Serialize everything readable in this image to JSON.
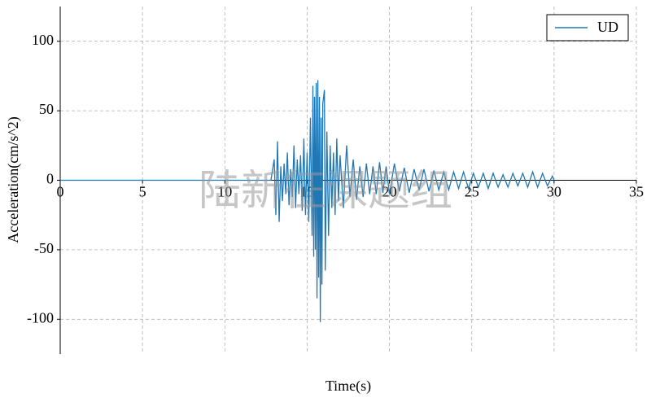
{
  "chart_data": {
    "type": "line",
    "xlabel": "Time(s)",
    "ylabel": "Acceleration(cm/s^2)",
    "watermark": "陆新征课题组",
    "xlim": [
      0,
      35
    ],
    "xticks": [
      0,
      5,
      10,
      15,
      20,
      25,
      30,
      35
    ],
    "ylim": [
      -125,
      125
    ],
    "yticks": [
      -100,
      -50,
      0,
      50,
      100
    ],
    "grid": true,
    "legend": "upper right",
    "series": [
      {
        "name": "UD",
        "color": "#1f77b4",
        "x": [
          0,
          12.8,
          13.0,
          13.1,
          13.2,
          13.3,
          13.4,
          13.5,
          13.6,
          13.7,
          13.8,
          13.9,
          14.0,
          14.1,
          14.2,
          14.3,
          14.4,
          14.5,
          14.6,
          14.7,
          14.8,
          14.9,
          15.0,
          15.1,
          15.2,
          15.3,
          15.35,
          15.4,
          15.45,
          15.5,
          15.55,
          15.6,
          15.65,
          15.7,
          15.75,
          15.8,
          15.85,
          15.9,
          15.95,
          16.05,
          16.1,
          16.2,
          16.3,
          16.4,
          16.5,
          16.6,
          16.7,
          16.8,
          16.9,
          17.0,
          17.2,
          17.4,
          17.6,
          17.8,
          18.0,
          18.2,
          18.4,
          18.6,
          18.8,
          19.0,
          19.2,
          19.4,
          19.6,
          19.8,
          20.0,
          20.3,
          20.6,
          20.9,
          21.2,
          21.5,
          21.8,
          22.1,
          22.4,
          22.7,
          23.0,
          23.3,
          23.6,
          23.9,
          24.2,
          24.5,
          24.8,
          25.1,
          25.4,
          25.7,
          26.0,
          26.3,
          26.6,
          26.9,
          27.2,
          27.5,
          27.8,
          28.1,
          28.4,
          28.7,
          29.0,
          29.3,
          29.6,
          29.9,
          30.0
        ],
        "values": [
          0,
          0,
          15,
          -25,
          28,
          -30,
          10,
          -15,
          12,
          -10,
          20,
          -18,
          8,
          -12,
          25,
          -20,
          15,
          -10,
          18,
          -22,
          30,
          -25,
          20,
          -30,
          45,
          -40,
          68,
          -55,
          60,
          -50,
          70,
          -85,
          72,
          -70,
          60,
          -102,
          45,
          -75,
          55,
          65,
          -65,
          35,
          -40,
          25,
          -20,
          20,
          -25,
          30,
          -15,
          18,
          -20,
          25,
          -12,
          15,
          -14,
          10,
          -12,
          12,
          -10,
          10,
          -10,
          13,
          -9,
          10,
          -10,
          12,
          -8,
          9,
          -9,
          8,
          -7,
          8,
          -8,
          7,
          -7,
          6,
          -7,
          6,
          -6,
          6,
          -6,
          5,
          -5,
          5,
          -6,
          5,
          -5,
          4,
          -5,
          5,
          -4,
          5,
          -5,
          6,
          -5,
          5,
          -4,
          3,
          0
        ]
      }
    ]
  }
}
